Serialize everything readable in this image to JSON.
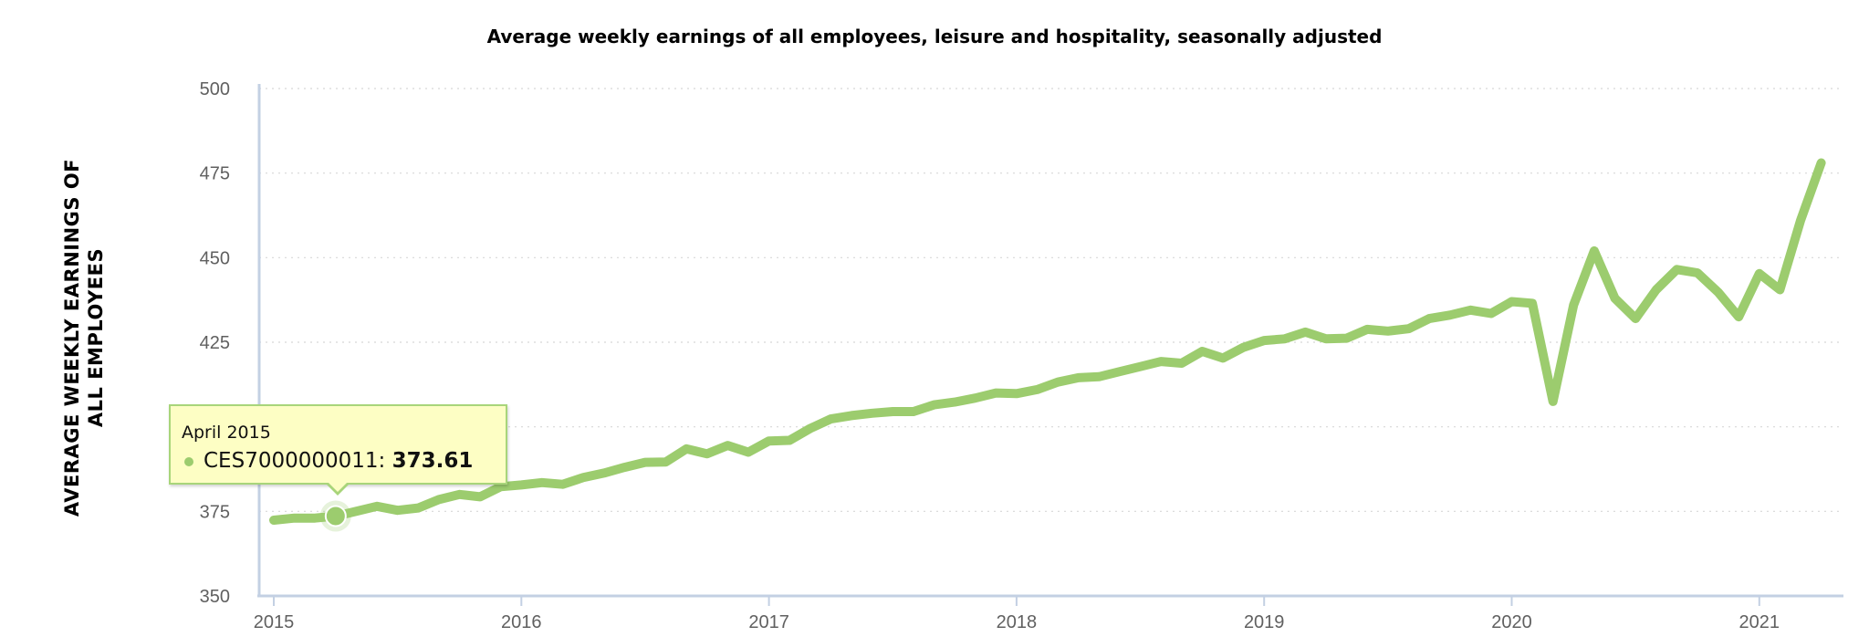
{
  "chart_data": {
    "type": "line",
    "title": "Average weekly earnings of all employees, leisure and hospitality, seasonally adjusted",
    "ylabel": "AVERAGE WEEKLY EARNINGS OF ALL EMPLOYEES",
    "xlabel": "",
    "ylim": [
      350,
      500
    ],
    "y_ticks": [
      350,
      375,
      400,
      425,
      450,
      475,
      500
    ],
    "x_ticks": [
      "2015",
      "2016",
      "2017",
      "2018",
      "2019",
      "2020",
      "2021"
    ],
    "grid": "horizontal dotted",
    "series": [
      {
        "name": "CES7000000011",
        "color": "#9ccc6e",
        "x": [
          "2015-01",
          "2015-02",
          "2015-03",
          "2015-04",
          "2015-05",
          "2015-06",
          "2015-07",
          "2015-08",
          "2015-09",
          "2015-10",
          "2015-11",
          "2015-12",
          "2016-01",
          "2016-02",
          "2016-03",
          "2016-04",
          "2016-05",
          "2016-06",
          "2016-07",
          "2016-08",
          "2016-09",
          "2016-10",
          "2016-11",
          "2016-12",
          "2017-01",
          "2017-02",
          "2017-03",
          "2017-04",
          "2017-05",
          "2017-06",
          "2017-07",
          "2017-08",
          "2017-09",
          "2017-10",
          "2017-11",
          "2017-12",
          "2018-01",
          "2018-02",
          "2018-03",
          "2018-04",
          "2018-05",
          "2018-06",
          "2018-07",
          "2018-08",
          "2018-09",
          "2018-10",
          "2018-11",
          "2018-12",
          "2019-01",
          "2019-02",
          "2019-03",
          "2019-04",
          "2019-05",
          "2019-06",
          "2019-07",
          "2019-08",
          "2019-09",
          "2019-10",
          "2019-11",
          "2019-12",
          "2020-01",
          "2020-02",
          "2020-03",
          "2020-04",
          "2020-05",
          "2020-06",
          "2020-07",
          "2020-08",
          "2020-09",
          "2020-10",
          "2020-11",
          "2020-12",
          "2021-01",
          "2021-02",
          "2021-03",
          "2021-04"
        ],
        "values": [
          372.4,
          373.0,
          373.0,
          373.61,
          375.0,
          376.5,
          375.3,
          376.0,
          378.5,
          380.0,
          379.3,
          382.3,
          382.8,
          383.5,
          383.0,
          385.0,
          386.3,
          388.0,
          389.5,
          389.6,
          393.5,
          392.0,
          394.5,
          392.5,
          395.8,
          396.0,
          399.5,
          402.3,
          403.3,
          404.0,
          404.5,
          404.5,
          406.5,
          407.3,
          408.5,
          410.0,
          409.8,
          411.0,
          413.2,
          414.5,
          414.8,
          416.3,
          417.8,
          419.3,
          418.8,
          422.3,
          420.3,
          423.5,
          425.5,
          426.0,
          428.0,
          426.0,
          426.2,
          428.8,
          428.3,
          429.0,
          432.0,
          433.0,
          434.5,
          433.5,
          437.0,
          436.5,
          407.5,
          436.0,
          452.0,
          438.0,
          432.0,
          440.5,
          446.5,
          445.5,
          439.8,
          432.5,
          445.3,
          440.5,
          461.0,
          478.0
        ]
      }
    ],
    "tooltip": {
      "title": "April 2015",
      "series_label": "CES7000000011",
      "value": "373.61",
      "highlight_index": 3
    }
  }
}
